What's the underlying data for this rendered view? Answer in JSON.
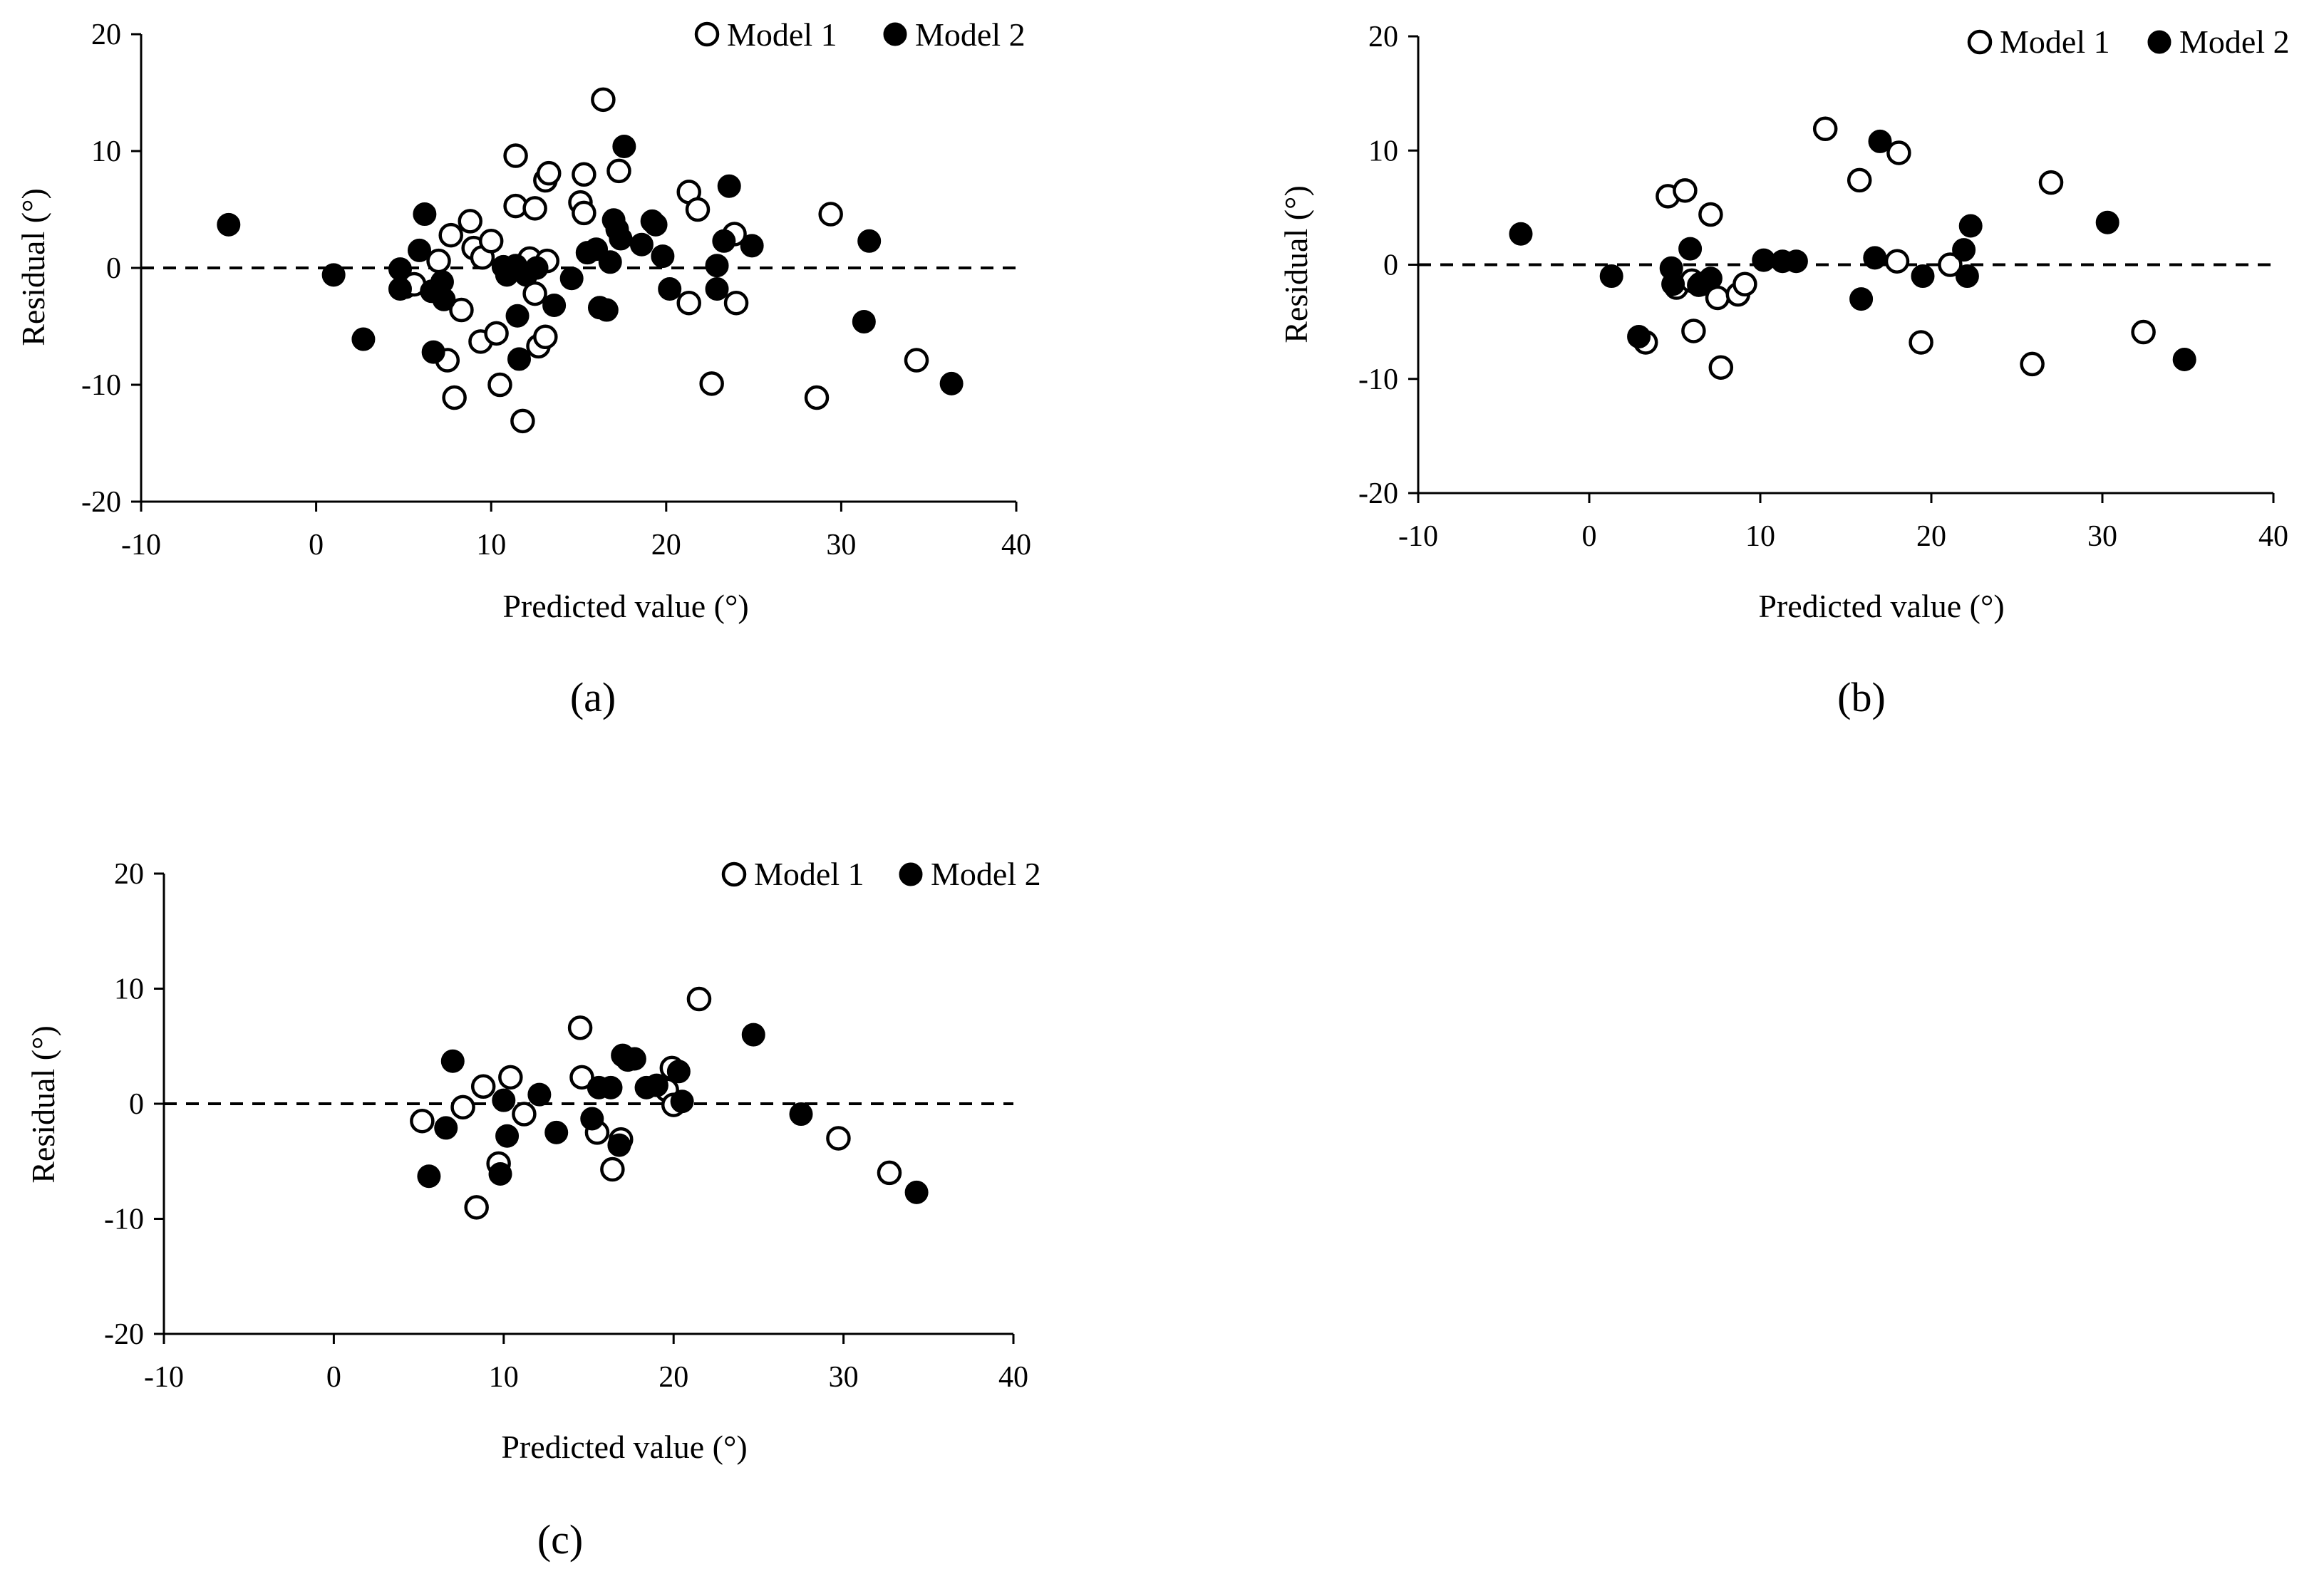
{
  "chart_data": [
    {
      "type": "scatter",
      "panel_label": "(a)",
      "xlabel": "Predicted value (°)",
      "ylabel": "Residual (°)",
      "xlim": [
        -10,
        40
      ],
      "ylim": [
        -20,
        20
      ],
      "xticks": [
        "-10",
        "0",
        "10",
        "20",
        "30",
        "40"
      ],
      "yticks": [
        "-20",
        "-10",
        "0",
        "10",
        "20"
      ],
      "reference_line_y": 0,
      "legend_position": "top-right",
      "series": [
        {
          "name": "Model 1",
          "marker": "open-circle",
          "points": [
            [
              5.1,
              -1.6
            ],
            [
              5.6,
              -1.4
            ],
            [
              7.0,
              0.6
            ],
            [
              7.5,
              -7.9
            ],
            [
              7.7,
              2.8
            ],
            [
              7.9,
              -11.1
            ],
            [
              8.3,
              -3.6
            ],
            [
              8.8,
              4.0
            ],
            [
              9.0,
              1.7
            ],
            [
              9.4,
              -6.3
            ],
            [
              9.5,
              0.9
            ],
            [
              10.0,
              2.3
            ],
            [
              10.3,
              -5.6
            ],
            [
              10.5,
              -10.0
            ],
            [
              11.4,
              9.6
            ],
            [
              11.4,
              5.3
            ],
            [
              11.8,
              -13.1
            ],
            [
              12.2,
              0.8
            ],
            [
              12.5,
              5.1
            ],
            [
              12.5,
              -2.2
            ],
            [
              12.7,
              -6.7
            ],
            [
              13.1,
              7.5
            ],
            [
              13.1,
              -5.9
            ],
            [
              13.2,
              0.6
            ],
            [
              13.3,
              8.1
            ],
            [
              15.1,
              5.6
            ],
            [
              15.3,
              4.7
            ],
            [
              15.3,
              8.0
            ],
            [
              16.4,
              14.4
            ],
            [
              17.3,
              8.3
            ],
            [
              21.3,
              6.5
            ],
            [
              21.3,
              -3.0
            ],
            [
              21.8,
              5.0
            ],
            [
              22.6,
              -9.9
            ],
            [
              23.9,
              2.9
            ],
            [
              24.0,
              -3.0
            ],
            [
              28.6,
              -11.1
            ],
            [
              29.4,
              4.6
            ],
            [
              34.3,
              -7.9
            ]
          ]
        },
        {
          "name": "Model 2",
          "marker": "filled-circle",
          "points": [
            [
              -5.0,
              3.7
            ],
            [
              1.0,
              -0.6
            ],
            [
              2.7,
              -6.1
            ],
            [
              4.8,
              -0.1
            ],
            [
              4.8,
              -1.8
            ],
            [
              5.9,
              1.5
            ],
            [
              6.2,
              4.6
            ],
            [
              6.6,
              -2.0
            ],
            [
              6.7,
              -7.2
            ],
            [
              7.2,
              -1.2
            ],
            [
              7.3,
              -2.7
            ],
            [
              10.7,
              0.1
            ],
            [
              10.9,
              -0.6
            ],
            [
              11.4,
              0.2
            ],
            [
              11.5,
              -4.1
            ],
            [
              11.6,
              -7.8
            ],
            [
              12.0,
              -0.6
            ],
            [
              12.6,
              0.0
            ],
            [
              13.6,
              -3.2
            ],
            [
              14.6,
              -0.9
            ],
            [
              15.5,
              1.3
            ],
            [
              16.0,
              1.6
            ],
            [
              16.2,
              -3.4
            ],
            [
              16.6,
              -3.6
            ],
            [
              16.8,
              0.5
            ],
            [
              17.0,
              4.1
            ],
            [
              17.2,
              3.3
            ],
            [
              17.4,
              2.5
            ],
            [
              17.6,
              10.4
            ],
            [
              18.6,
              2.0
            ],
            [
              19.2,
              4.0
            ],
            [
              19.4,
              3.7
            ],
            [
              19.8,
              1.0
            ],
            [
              20.2,
              -1.8
            ],
            [
              22.9,
              -1.8
            ],
            [
              22.9,
              0.2
            ],
            [
              23.3,
              2.3
            ],
            [
              23.6,
              7.0
            ],
            [
              24.9,
              1.9
            ],
            [
              31.3,
              -4.6
            ],
            [
              31.6,
              2.3
            ],
            [
              36.3,
              -9.9
            ]
          ]
        }
      ]
    },
    {
      "type": "scatter",
      "panel_label": "(b)",
      "xlabel": "Predicted value (°)",
      "ylabel": "Residual (°)",
      "xlim": [
        -10,
        40
      ],
      "ylim": [
        -20,
        20
      ],
      "xticks": [
        "-10",
        "0",
        "10",
        "20",
        "30",
        "40"
      ],
      "yticks": [
        "-20",
        "-10",
        "0",
        "10",
        "20"
      ],
      "reference_line_y": 0,
      "legend_position": "top-right",
      "series": [
        {
          "name": "Model 1",
          "marker": "open-circle",
          "points": [
            [
              3.3,
              -6.8
            ],
            [
              4.6,
              6.0
            ],
            [
              5.1,
              -2.0
            ],
            [
              5.6,
              6.5
            ],
            [
              6.0,
              -1.4
            ],
            [
              6.1,
              -5.8
            ],
            [
              6.5,
              -1.7
            ],
            [
              7.1,
              4.4
            ],
            [
              7.5,
              -2.9
            ],
            [
              7.7,
              -9.0
            ],
            [
              8.7,
              -2.6
            ],
            [
              9.1,
              -1.7
            ],
            [
              13.8,
              11.9
            ],
            [
              15.8,
              7.4
            ],
            [
              18.0,
              0.3
            ],
            [
              18.1,
              9.8
            ],
            [
              19.4,
              -6.8
            ],
            [
              21.1,
              0.0
            ],
            [
              25.9,
              -8.7
            ],
            [
              27.0,
              7.2
            ],
            [
              32.4,
              -5.9
            ]
          ]
        },
        {
          "name": "Model 2",
          "marker": "filled-circle",
          "points": [
            [
              -4.0,
              2.7
            ],
            [
              1.3,
              -1.0
            ],
            [
              2.9,
              -6.3
            ],
            [
              4.8,
              -0.3
            ],
            [
              4.9,
              -1.7
            ],
            [
              5.9,
              1.4
            ],
            [
              6.4,
              -1.8
            ],
            [
              7.1,
              -1.2
            ],
            [
              10.2,
              0.4
            ],
            [
              11.3,
              0.3
            ],
            [
              12.1,
              0.3
            ],
            [
              15.9,
              -3.0
            ],
            [
              16.7,
              0.6
            ],
            [
              17.0,
              10.8
            ],
            [
              19.5,
              -1.0
            ],
            [
              21.9,
              1.3
            ],
            [
              22.1,
              -1.0
            ],
            [
              22.3,
              3.4
            ],
            [
              30.3,
              3.7
            ],
            [
              34.8,
              -8.3
            ]
          ]
        }
      ]
    },
    {
      "type": "scatter",
      "panel_label": "(c)",
      "xlabel": "Predicted value (°)",
      "ylabel": "Residual (°)",
      "xlim": [
        -10,
        40
      ],
      "ylim": [
        -20,
        20
      ],
      "xticks": [
        "-10",
        "0",
        "10",
        "20",
        "30",
        "40"
      ],
      "yticks": [
        "-20",
        "-10",
        "0",
        "10",
        "20"
      ],
      "reference_line_y": 0,
      "legend_position": "top-right",
      "series": [
        {
          "name": "Model 1",
          "marker": "open-circle",
          "points": [
            [
              5.2,
              -1.5
            ],
            [
              7.6,
              -0.3
            ],
            [
              8.4,
              -9.0
            ],
            [
              8.8,
              1.5
            ],
            [
              9.7,
              -5.2
            ],
            [
              10.4,
              2.3
            ],
            [
              11.2,
              -0.9
            ],
            [
              14.5,
              6.6
            ],
            [
              14.6,
              2.3
            ],
            [
              15.5,
              -2.5
            ],
            [
              16.4,
              -5.7
            ],
            [
              16.9,
              -3.1
            ],
            [
              19.6,
              1.2
            ],
            [
              19.9,
              3.1
            ],
            [
              20.0,
              -0.1
            ],
            [
              21.5,
              9.1
            ],
            [
              29.7,
              -3.0
            ],
            [
              32.7,
              -6.0
            ]
          ]
        },
        {
          "name": "Model 2",
          "marker": "filled-circle",
          "points": [
            [
              5.6,
              -6.3
            ],
            [
              6.6,
              -2.1
            ],
            [
              7.0,
              3.7
            ],
            [
              9.8,
              -6.1
            ],
            [
              10.0,
              0.3
            ],
            [
              10.2,
              -2.8
            ],
            [
              12.1,
              0.8
            ],
            [
              13.1,
              -2.5
            ],
            [
              15.2,
              -1.3
            ],
            [
              15.6,
              1.4
            ],
            [
              16.3,
              1.4
            ],
            [
              16.8,
              -3.6
            ],
            [
              17.0,
              4.2
            ],
            [
              17.3,
              3.8
            ],
            [
              17.7,
              3.9
            ],
            [
              18.4,
              1.4
            ],
            [
              19.0,
              1.6
            ],
            [
              20.3,
              2.8
            ],
            [
              20.5,
              0.2
            ],
            [
              24.7,
              6.0
            ],
            [
              27.5,
              -0.9
            ],
            [
              34.3,
              -7.7
            ]
          ]
        }
      ]
    }
  ]
}
